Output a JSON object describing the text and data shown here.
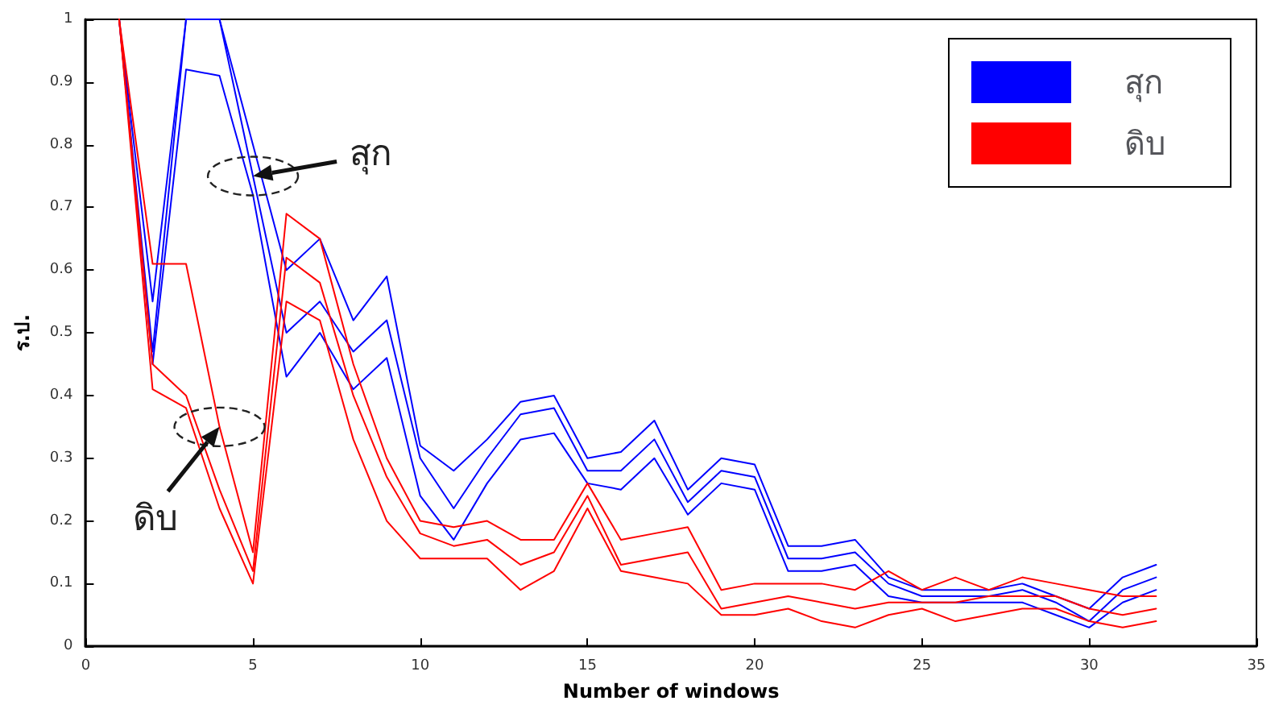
{
  "chart_data": {
    "type": "line",
    "xlabel": "Number of windows",
    "ylabel": "ร.ป.",
    "x": [
      1,
      2,
      3,
      4,
      5,
      6,
      7,
      8,
      9,
      10,
      11,
      12,
      13,
      14,
      15,
      16,
      17,
      18,
      19,
      20,
      21,
      22,
      23,
      24,
      25,
      26,
      27,
      28,
      29,
      30,
      31,
      32
    ],
    "series": [
      {
        "name": "สุก",
        "color": "#0000ff",
        "values": [
          1,
          0.47,
          1,
          1,
          0.75,
          0.5,
          0.55,
          0.47,
          0.52,
          0.3,
          0.22,
          0.3,
          0.37,
          0.38,
          0.28,
          0.28,
          0.33,
          0.23,
          0.28,
          0.27,
          0.14,
          0.14,
          0.15,
          0.1,
          0.08,
          0.08,
          0.08,
          0.09,
          0.07,
          0.04,
          0.09,
          0.11
        ]
      },
      {
        "color": "#0000ff",
        "values": [
          1,
          0.55,
          1,
          1,
          0.8,
          0.6,
          0.65,
          0.52,
          0.59,
          0.32,
          0.28,
          0.33,
          0.39,
          0.4,
          0.3,
          0.31,
          0.36,
          0.25,
          0.3,
          0.29,
          0.16,
          0.16,
          0.17,
          0.11,
          0.09,
          0.09,
          0.09,
          0.1,
          0.08,
          0.06,
          0.11,
          0.13
        ]
      },
      {
        "color": "#0000ff",
        "values": [
          1,
          0.45,
          0.92,
          0.91,
          0.72,
          0.43,
          0.5,
          0.41,
          0.46,
          0.24,
          0.17,
          0.26,
          0.33,
          0.34,
          0.26,
          0.25,
          0.3,
          0.21,
          0.26,
          0.25,
          0.12,
          0.12,
          0.13,
          0.08,
          0.07,
          0.07,
          0.07,
          0.07,
          0.05,
          0.03,
          0.07,
          0.09
        ]
      },
      {
        "name": "ดิบ",
        "color": "#ff0000",
        "values": [
          1,
          0.45,
          0.4,
          0.25,
          0.12,
          0.62,
          0.58,
          0.4,
          0.27,
          0.18,
          0.16,
          0.17,
          0.13,
          0.15,
          0.24,
          0.13,
          0.14,
          0.15,
          0.06,
          0.07,
          0.08,
          0.07,
          0.06,
          0.07,
          0.07,
          0.07,
          0.08,
          0.08,
          0.08,
          0.06,
          0.05,
          0.06
        ]
      },
      {
        "color": "#ff0000",
        "values": [
          1,
          0.61,
          0.61,
          0.35,
          0.15,
          0.69,
          0.65,
          0.45,
          0.3,
          0.2,
          0.19,
          0.2,
          0.17,
          0.17,
          0.26,
          0.17,
          0.18,
          0.19,
          0.09,
          0.1,
          0.1,
          0.1,
          0.09,
          0.12,
          0.09,
          0.11,
          0.09,
          0.11,
          0.1,
          0.09,
          0.08,
          0.08
        ]
      },
      {
        "color": "#ff0000",
        "values": [
          1,
          0.41,
          0.38,
          0.22,
          0.1,
          0.55,
          0.52,
          0.33,
          0.2,
          0.14,
          0.14,
          0.14,
          0.09,
          0.12,
          0.22,
          0.12,
          0.11,
          0.1,
          0.05,
          0.05,
          0.06,
          0.04,
          0.03,
          0.05,
          0.06,
          0.04,
          0.05,
          0.06,
          0.06,
          0.04,
          0.03,
          0.04
        ]
      }
    ],
    "xlim": [
      0,
      35
    ],
    "xticks": [
      0,
      5,
      10,
      15,
      20,
      25,
      30,
      35
    ],
    "ylim": [
      0,
      1
    ],
    "yticks": [
      0,
      0.1,
      0.2,
      0.3,
      0.4,
      0.5,
      0.6,
      0.7,
      0.8,
      0.9,
      1
    ],
    "annotations": [
      {
        "text": "สุก",
        "x": 5,
        "y": 0.75
      },
      {
        "text": "ดิบ",
        "x": 4,
        "y": 0.35
      }
    ],
    "legend": "top right",
    "grid": false,
    "marker": "none",
    "line_style": "solid"
  }
}
